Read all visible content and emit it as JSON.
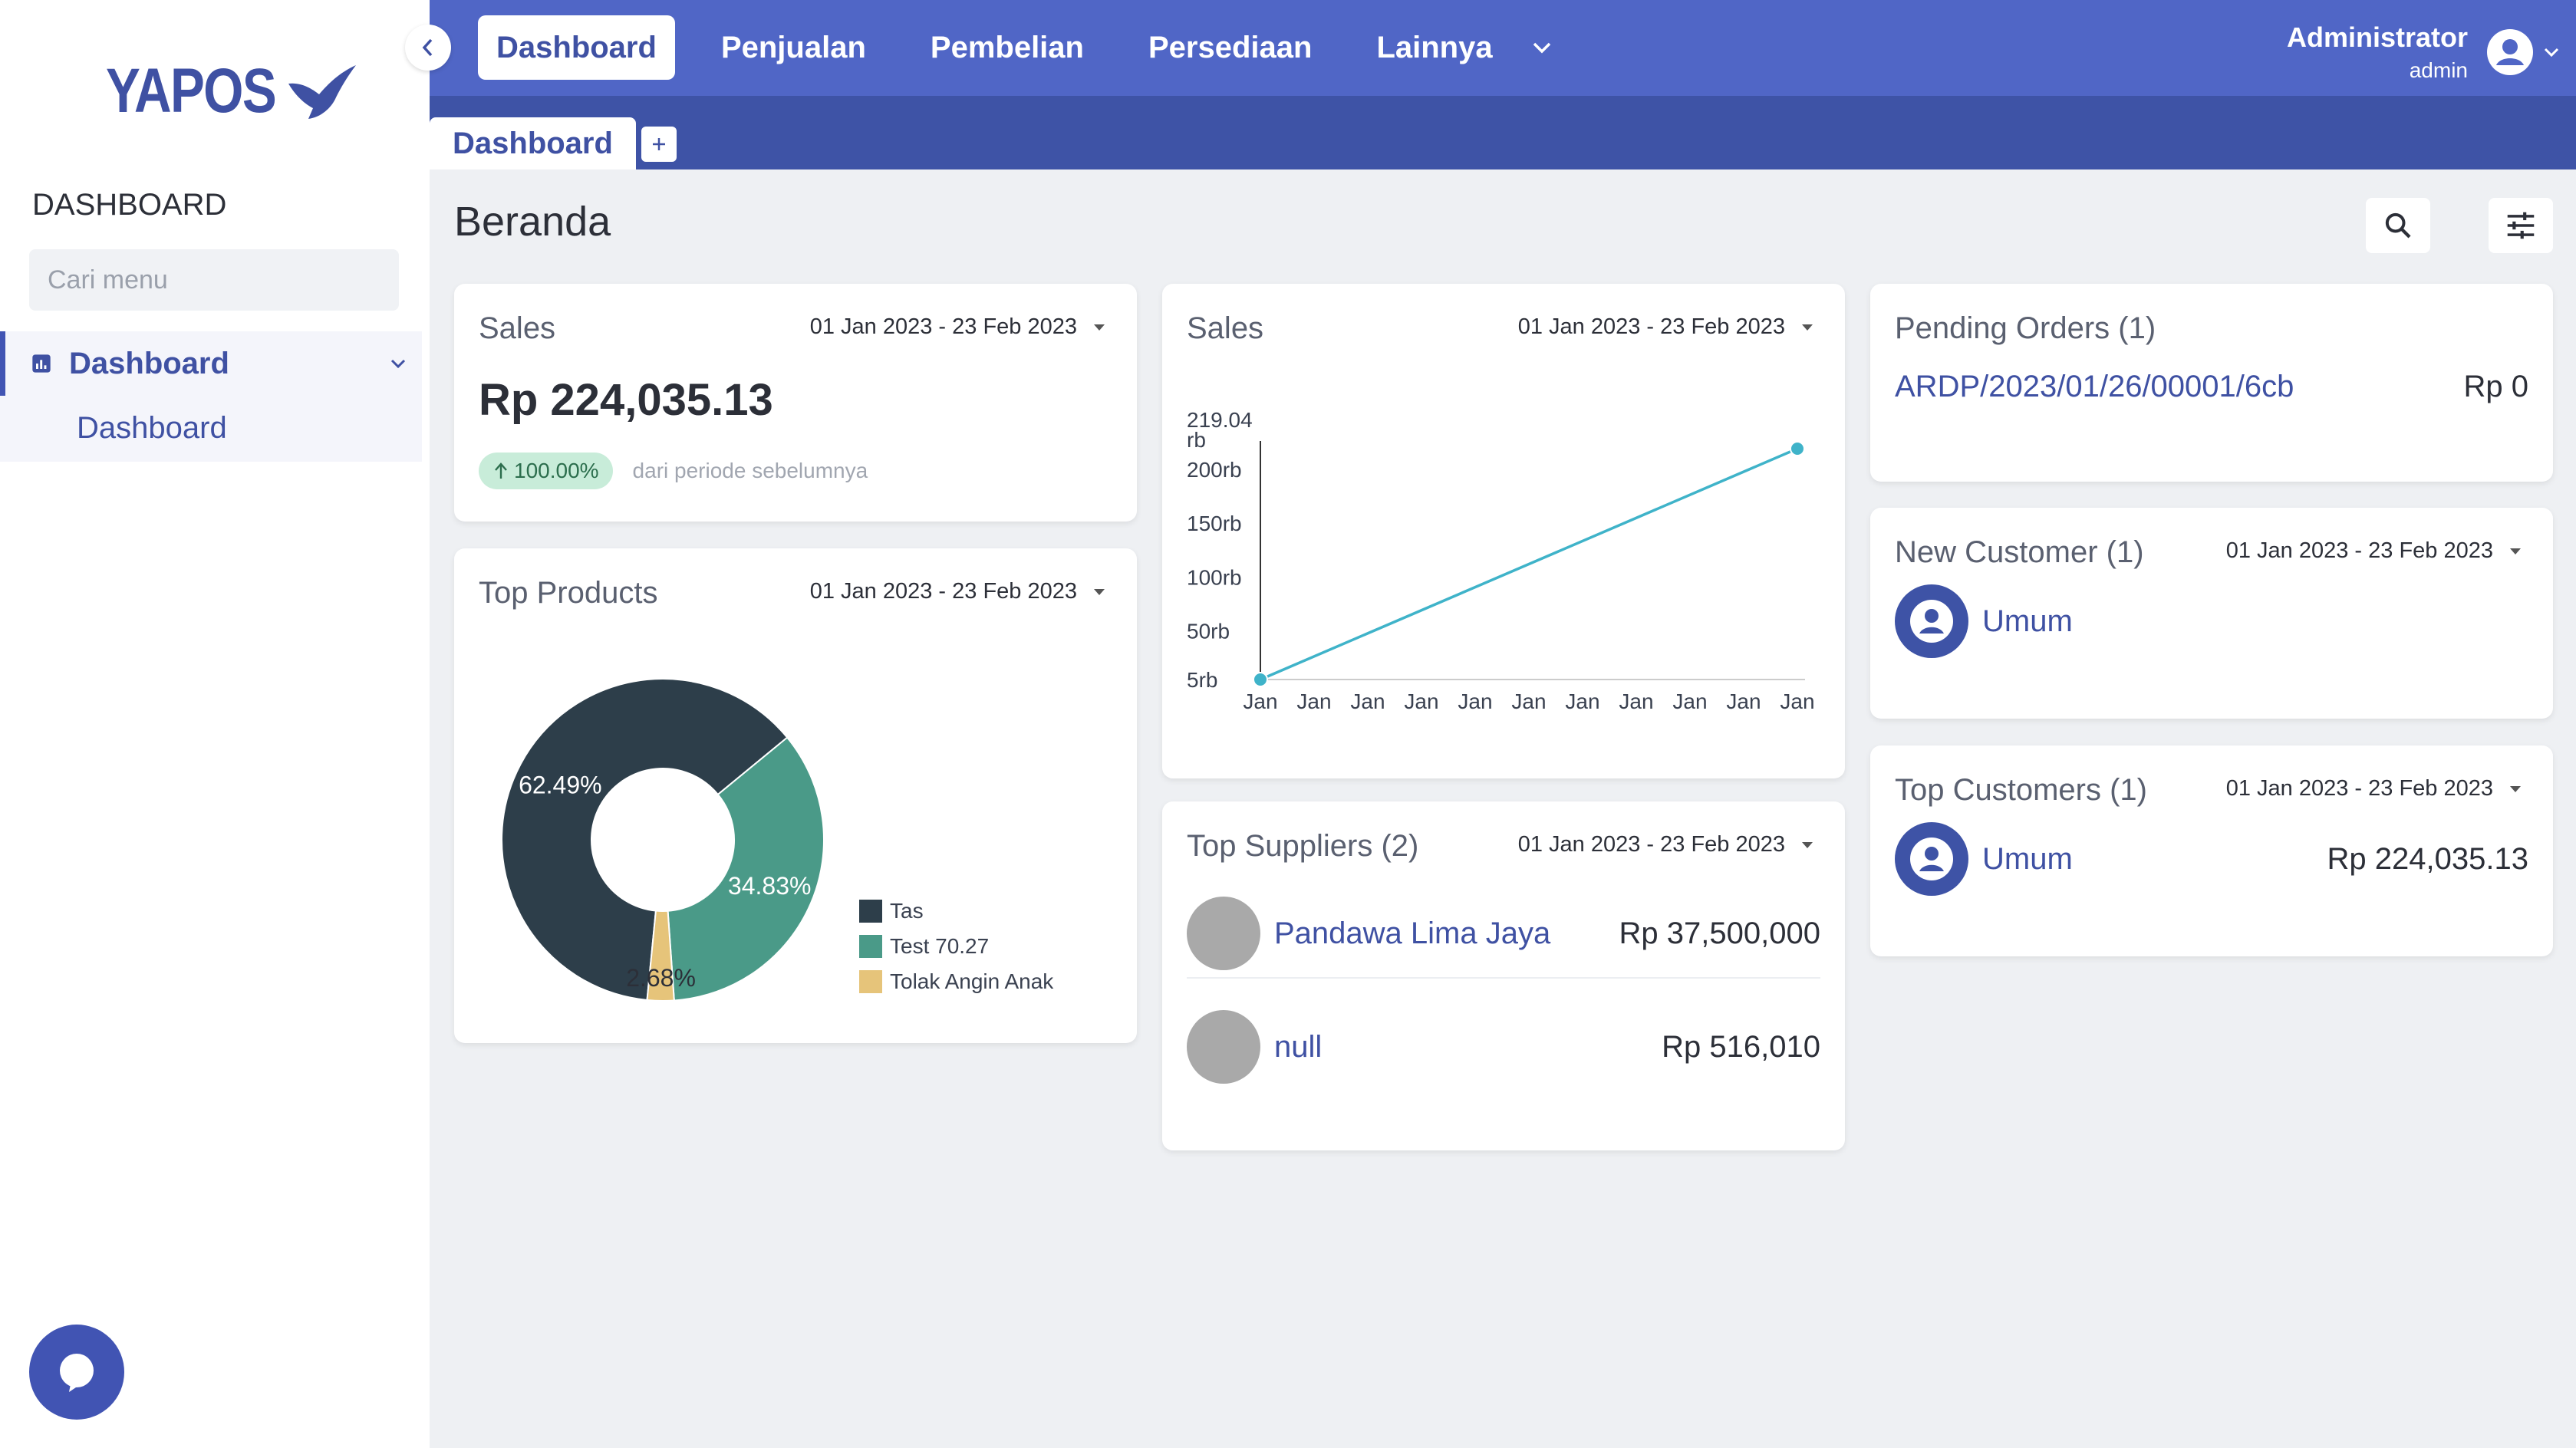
{
  "brand": {
    "name": "YAPOS"
  },
  "sidebar": {
    "section_title": "DASHBOARD",
    "search_placeholder": "Cari menu",
    "menu": {
      "parent_label": "Dashboard",
      "child_label": "Dashboard"
    }
  },
  "topnav": {
    "items": [
      {
        "label": "Dashboard",
        "active": true
      },
      {
        "label": "Penjualan"
      },
      {
        "label": "Pembelian"
      },
      {
        "label": "Persediaan"
      },
      {
        "label": "Lainnya"
      }
    ]
  },
  "user": {
    "name": "Administrator",
    "role": "admin"
  },
  "tabs": [
    {
      "label": "Dashboard"
    }
  ],
  "page": {
    "title": "Beranda"
  },
  "cards": {
    "sales_summary": {
      "title": "Sales",
      "date_range": "01 Jan 2023 - 23 Feb 2023",
      "value": "Rp 224,035.13",
      "growth": "100.00%",
      "growth_text": "dari periode sebelumnya"
    },
    "top_products": {
      "title": "Top Products",
      "date_range": "01 Jan 2023 - 23 Feb 2023"
    },
    "sales_chart": {
      "title": "Sales",
      "date_range": "01 Jan 2023 - 23 Feb 2023"
    },
    "top_suppliers": {
      "title": "Top Suppliers (2)",
      "date_range": "01 Jan 2023 - 23 Feb 2023",
      "rows": [
        {
          "name": "Pandawa Lima Jaya",
          "amount": "Rp 37,500,000"
        },
        {
          "name": "null",
          "amount": "Rp 516,010"
        }
      ]
    },
    "pending_orders": {
      "title": "Pending Orders (1)",
      "rows": [
        {
          "code": "ARDP/2023/01/26/00001/6cb",
          "amount": "Rp 0"
        }
      ]
    },
    "new_customer": {
      "title": "New Customer (1)",
      "date_range": "01 Jan 2023 - 23 Feb 2023",
      "rows": [
        {
          "name": "Umum"
        }
      ]
    },
    "top_customers": {
      "title": "Top Customers (1)",
      "date_range": "01 Jan 2023 - 23 Feb 2023",
      "rows": [
        {
          "name": "Umum",
          "amount": "Rp 224,035.13"
        }
      ]
    }
  },
  "colors": {
    "primary": "#3f51a3",
    "topbar": "#5066c6",
    "tabbar": "#3e53a6",
    "donut_tas": "#2d3e4a",
    "donut_test": "#4a9a88",
    "donut_tolak": "#e6c47a",
    "line": "#3fb3c9"
  },
  "chart_data": [
    {
      "type": "pie",
      "variant": "donut",
      "labels": [
        "Tas",
        "Test 70.27",
        "Tolak Angin Anak"
      ],
      "values": [
        62.49,
        34.83,
        2.68
      ],
      "value_labels": [
        "62.49%",
        "34.83%",
        "2.68%"
      ],
      "legend": "right"
    },
    {
      "type": "line",
      "x": [
        "Jan",
        "Jan",
        "Jan",
        "Jan",
        "Jan",
        "Jan",
        "Jan",
        "Jan",
        "Jan",
        "Jan",
        "Jan"
      ],
      "series": [
        {
          "values": [
            5,
            null,
            null,
            null,
            null,
            null,
            null,
            null,
            null,
            null,
            219.04
          ]
        }
      ],
      "yticks": [
        "5rb",
        "50rb",
        "100rb",
        "150rb",
        "200rb"
      ],
      "ymax_label": "219.04 rb",
      "ylim": [
        5,
        219.04
      ]
    }
  ]
}
